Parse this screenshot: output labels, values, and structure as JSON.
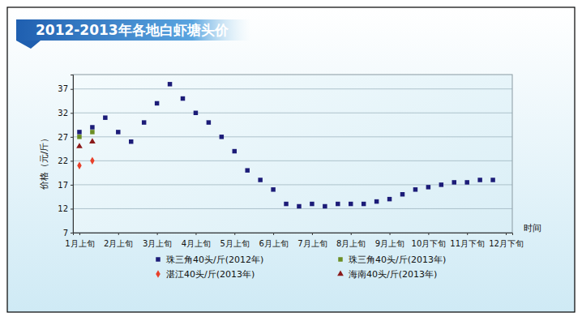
{
  "chart_data": {
    "type": "line",
    "title": "2012-2013年各地白虾塘头价",
    "xlabel": "时间",
    "ylabel": "价格（元/斤）",
    "categories": [
      "1月上旬",
      null,
      null,
      "2月上旬",
      null,
      null,
      "3月上旬",
      null,
      null,
      "4月上旬",
      null,
      null,
      "5月上旬",
      null,
      null,
      "6月上旬",
      null,
      null,
      "7月上旬",
      null,
      null,
      "8月上旬",
      null,
      null,
      "9月上旬",
      null,
      null,
      "10月下旬",
      null,
      null,
      "11月下旬",
      null,
      null,
      "12月下旬"
    ],
    "ylim": [
      7,
      40
    ],
    "yticks": [
      7,
      12,
      17,
      22,
      27,
      32,
      37
    ],
    "grid": true,
    "legend": "bottom",
    "series": [
      {
        "name": "珠三角40头/斤(2012年)",
        "color": "#1c1c78",
        "marker": "square",
        "line_style": "none",
        "values": [
          28,
          29,
          31,
          28,
          26,
          30,
          34,
          38,
          35,
          32,
          30,
          27,
          24,
          20,
          18,
          16,
          13,
          12.5,
          13,
          12.5,
          13,
          13,
          13,
          13.5,
          14,
          15,
          16,
          16.5,
          17,
          17.5,
          17.5,
          18,
          18,
          null
        ]
      },
      {
        "name": "珠三角40头/斤(2013年)",
        "color": "#6b8e23",
        "marker": "square",
        "line_style": "none",
        "values": [
          27,
          28,
          null,
          null,
          null,
          null,
          null,
          null,
          null,
          null,
          null,
          null,
          null,
          null,
          null,
          null,
          null,
          null,
          null,
          null,
          null,
          null,
          null,
          null,
          null,
          null,
          null,
          null,
          null,
          null,
          null,
          null,
          null,
          null
        ]
      },
      {
        "name": "湛江40头/斤(2013年)",
        "color": "#e8402a",
        "marker": "diamond",
        "line_style": "none",
        "values": [
          21,
          22,
          null,
          null,
          null,
          null,
          null,
          null,
          null,
          null,
          null,
          null,
          null,
          null,
          null,
          null,
          null,
          null,
          null,
          null,
          null,
          null,
          null,
          null,
          null,
          null,
          null,
          null,
          null,
          null,
          null,
          null,
          null,
          null
        ]
      },
      {
        "name": "海南40头/斤(2013年)",
        "color": "#8b1a1a",
        "marker": "triangle",
        "line_style": "none",
        "values": [
          25,
          26,
          null,
          null,
          null,
          null,
          null,
          null,
          null,
          null,
          null,
          null,
          null,
          null,
          null,
          null,
          null,
          null,
          null,
          null,
          null,
          null,
          null,
          null,
          null,
          null,
          null,
          null,
          null,
          null,
          null,
          null,
          null,
          null
        ]
      }
    ]
  }
}
